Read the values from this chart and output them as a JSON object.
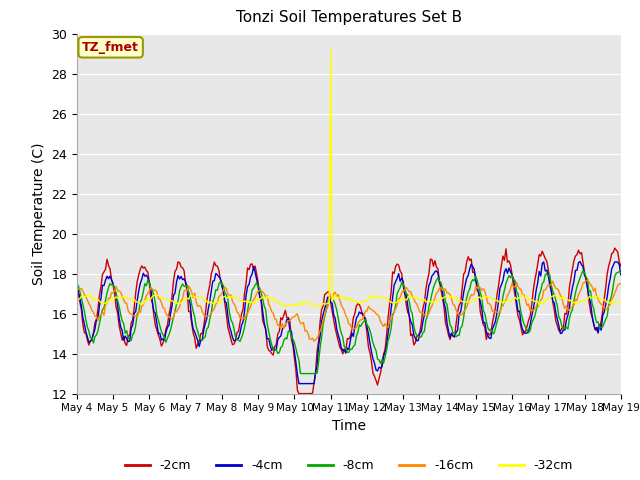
{
  "title": "Tonzi Soil Temperatures Set B",
  "xlabel": "Time",
  "ylabel": "Soil Temperature (C)",
  "ylim": [
    12,
    30
  ],
  "xlim": [
    0,
    360
  ],
  "x_tick_labels": [
    "May 4",
    "May 5",
    "May 6",
    "May 7",
    "May 8",
    "May 9",
    "May 10",
    "May 11",
    "May 12",
    "May 13",
    "May 14",
    "May 15",
    "May 16",
    "May 17",
    "May 18",
    "May 19"
  ],
  "x_tick_positions": [
    0,
    24,
    48,
    72,
    96,
    120,
    144,
    168,
    192,
    216,
    240,
    264,
    288,
    312,
    336,
    360
  ],
  "label_annotation": "TZ_fmet",
  "legend_entries": [
    "-2cm",
    "-4cm",
    "-8cm",
    "-16cm",
    "-32cm"
  ],
  "legend_colors": [
    "#cc0000",
    "#0000cc",
    "#00aa00",
    "#ff8800",
    "#ffff00"
  ]
}
